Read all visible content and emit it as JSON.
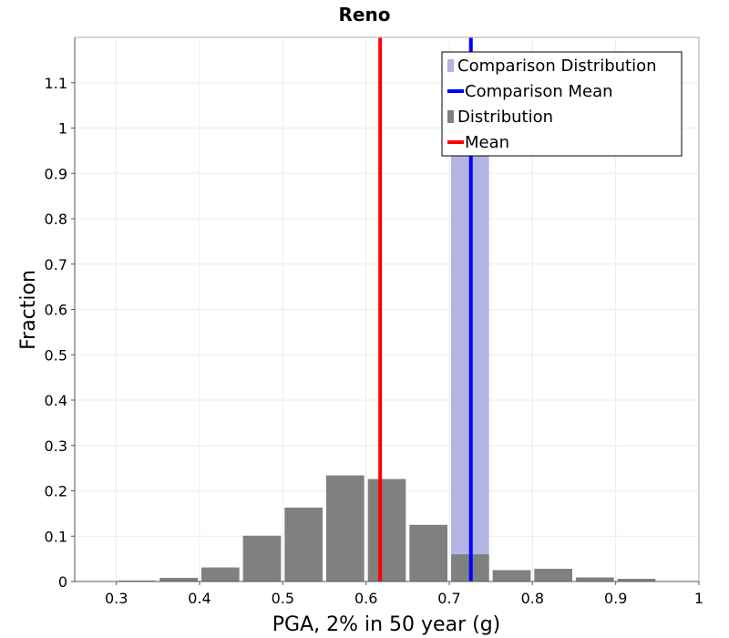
{
  "chart_data": {
    "type": "bar",
    "title": "Reno",
    "xlabel": "PGA, 2% in 50 year (g)",
    "ylabel": "Fraction",
    "xlim": [
      0.25,
      1.0
    ],
    "ylim": [
      0,
      1.2
    ],
    "x_ticks": [
      "0.3",
      "0.4",
      "0.5",
      "0.6",
      "0.7",
      "0.8",
      "0.9",
      "1"
    ],
    "x_tick_values": [
      0.3,
      0.4,
      0.5,
      0.6,
      0.7,
      0.8,
      0.9,
      1.0
    ],
    "y_ticks": [
      "0",
      "0.1",
      "0.2",
      "0.3",
      "0.4",
      "0.5",
      "0.6",
      "0.7",
      "0.8",
      "0.9",
      "1",
      "1.1"
    ],
    "y_tick_values": [
      0,
      0.1,
      0.2,
      0.3,
      0.4,
      0.5,
      0.6,
      0.7,
      0.8,
      0.9,
      1.0,
      1.1
    ],
    "bin_width": 0.05,
    "grid": true,
    "legend_position": "top-right",
    "series": [
      {
        "name": "Comparison Distribution",
        "kind": "bar",
        "color": "#b4b4e4",
        "x": [
          0.725
        ],
        "values": [
          1.0
        ]
      },
      {
        "name": "Comparison Mean",
        "kind": "vline",
        "color": "#0000ff",
        "x": 0.726
      },
      {
        "name": "Distribution",
        "kind": "bar",
        "color": "#808080",
        "x": [
          0.325,
          0.375,
          0.425,
          0.475,
          0.525,
          0.575,
          0.625,
          0.675,
          0.725,
          0.775,
          0.825,
          0.875,
          0.925,
          0.975
        ],
        "values": [
          0.002,
          0.008,
          0.031,
          0.101,
          0.163,
          0.234,
          0.226,
          0.125,
          0.06,
          0.025,
          0.028,
          0.009,
          0.006,
          0.001
        ]
      },
      {
        "name": "Mean",
        "kind": "vline",
        "color": "#ff0000",
        "x": 0.617
      }
    ]
  }
}
